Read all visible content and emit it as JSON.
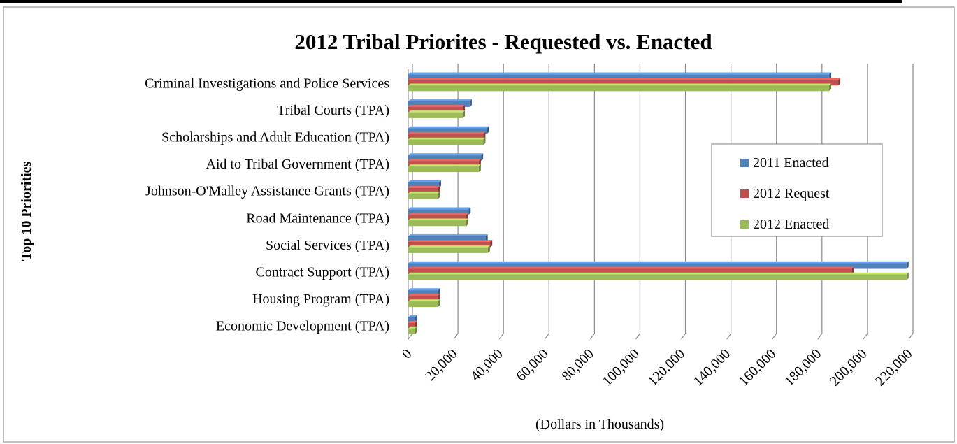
{
  "chart_data": {
    "type": "bar",
    "orientation": "horizontal",
    "title": "2012 Tribal Priorites - Requested vs. Enacted",
    "xlabel": "(Dollars in Thousands)",
    "ylabel": "Top 10 Priorities",
    "xlim": [
      0,
      220000
    ],
    "xticks": [
      0,
      20000,
      40000,
      60000,
      80000,
      100000,
      120000,
      140000,
      160000,
      180000,
      200000,
      220000
    ],
    "tick_labels": [
      "0",
      "20,000",
      "40,000",
      "60,000",
      "80,000",
      "100,000",
      "120,000",
      "140,000",
      "160,000",
      "180,000",
      "200,000",
      "220,000"
    ],
    "grid": true,
    "legend_position": "right",
    "categories": [
      "Criminal Investigations and Police Services",
      "Tribal Courts (TPA)",
      "Scholarships and Adult Education (TPA)",
      "Aid to Tribal Government (TPA)",
      "Johnson-O'Malley Assistance Grants (TPA)",
      "Road Maintenance (TPA)",
      "Social Services (TPA)",
      "Contract Support (TPA)",
      "Housing Program (TPA)",
      "Economic Development (TPA)"
    ],
    "series": [
      {
        "name": "2011 Enacted",
        "color": "#4f81bd",
        "values": [
          185000,
          27000,
          34500,
          32000,
          13500,
          26500,
          34000,
          219000,
          13000,
          3000
        ]
      },
      {
        "name": "2012 Request",
        "color": "#c0504d",
        "values": [
          189000,
          24000,
          33000,
          31000,
          13000,
          25500,
          36000,
          195000,
          13000,
          3000
        ]
      },
      {
        "name": "2012 Enacted",
        "color": "#9bbb59",
        "values": [
          185000,
          24000,
          33000,
          31000,
          13000,
          25500,
          35000,
          219000,
          13000,
          3000
        ]
      }
    ]
  }
}
